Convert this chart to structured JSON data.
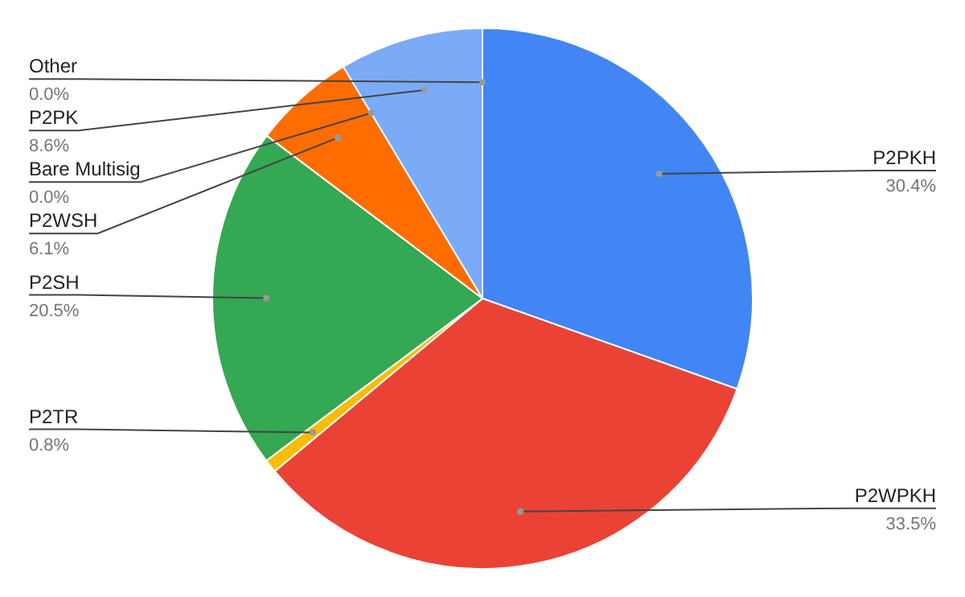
{
  "chart_data": {
    "type": "pie",
    "categories": [
      "P2PKH",
      "P2WPKH",
      "P2TR",
      "P2SH",
      "P2WSH",
      "Bare Multisig",
      "P2PK",
      "Other"
    ],
    "values": [
      30.4,
      33.5,
      0.8,
      20.5,
      6.1,
      0.0,
      8.6,
      0.0
    ],
    "colors": [
      "#4285f4",
      "#ea4335",
      "#fbbc04",
      "#34a853",
      "#ff6d01",
      "#46bdc6",
      "#7baaf7",
      "#f07b72"
    ],
    "value_labels": [
      "30.4%",
      "33.5%",
      "0.8%",
      "20.5%",
      "6.1%",
      "0.0%",
      "8.6%",
      "0.0%"
    ],
    "legend": false
  }
}
